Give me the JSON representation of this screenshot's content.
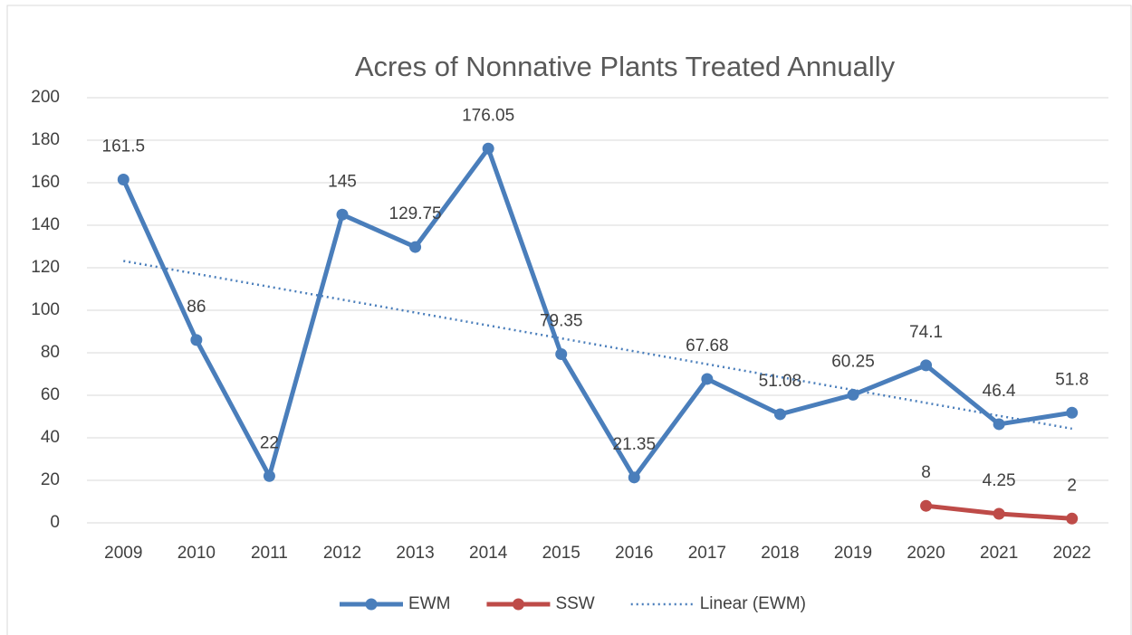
{
  "chart_data": {
    "type": "line",
    "title": "Acres of Nonnative Plants Treated Annually",
    "categories": [
      "2009",
      "2010",
      "2011",
      "2012",
      "2013",
      "2014",
      "2015",
      "2016",
      "2017",
      "2018",
      "2019",
      "2020",
      "2021",
      "2022"
    ],
    "series": [
      {
        "name": "EWM",
        "color": "#4a7ebb",
        "values": [
          161.5,
          86,
          22,
          145,
          129.75,
          176.05,
          79.35,
          21.35,
          67.68,
          51.08,
          60.25,
          74.1,
          46.4,
          51.8
        ],
        "data_labels": true
      },
      {
        "name": "SSW",
        "color": "#be4b48",
        "values": [
          null,
          null,
          null,
          null,
          null,
          null,
          null,
          null,
          null,
          null,
          null,
          8,
          4.25,
          2
        ],
        "data_labels": true
      },
      {
        "name": "Linear (EWM)",
        "color": "#4a7ebb",
        "dash": "dotted",
        "values": [
          123.2,
          117.13,
          111.06,
          104.99,
          98.92,
          92.85,
          86.78,
          80.71,
          74.64,
          68.57,
          62.5,
          56.43,
          50.36,
          44.29
        ]
      }
    ],
    "ylim": [
      0,
      200
    ],
    "yticks": [
      0,
      20,
      40,
      60,
      80,
      100,
      120,
      140,
      160,
      180,
      200
    ],
    "grid": true,
    "legend": "bottom"
  }
}
